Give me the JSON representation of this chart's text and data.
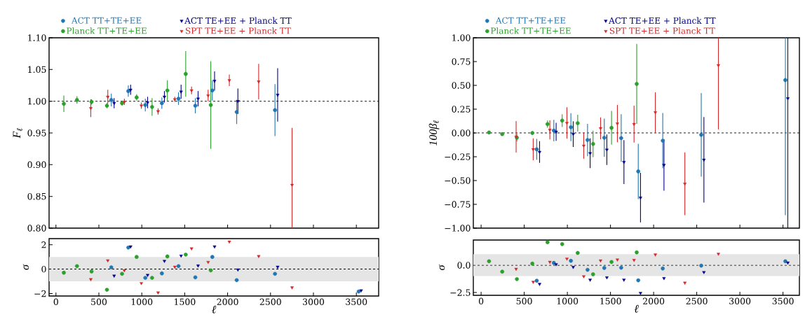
{
  "chart_data": [
    {
      "type": "scatter",
      "ylabel": "F$_{ℓ}$",
      "xlim": [
        -80,
        3760
      ],
      "ylim": [
        0.8,
        1.1
      ],
      "xticks": [
        0,
        500,
        1000,
        1500,
        2000,
        2500,
        3000,
        3500
      ],
      "yticks": [
        {
          "value": 0.8,
          "label": "0.80"
        },
        {
          "value": 0.85,
          "label": "0.85"
        },
        {
          "value": 0.9,
          "label": "0.90"
        },
        {
          "value": 0.95,
          "label": "0.95"
        },
        {
          "value": 1.0,
          "label": "1.00"
        },
        {
          "value": 1.05,
          "label": "1.05"
        },
        {
          "value": 1.1,
          "label": "1.10"
        }
      ],
      "tick_labels": "y",
      "legend": "top",
      "ref_lines": [
        {
          "axis": "y",
          "value": 1,
          "line_style": "dashed",
          "color": "#000000"
        }
      ],
      "series": [
        {
          "name": "ACT TT+TE+EE",
          "color": "#1f77b4",
          "marker": "circle",
          "x": [
            645,
            843,
            1041,
            1234,
            1428,
            1624,
            1822,
            2106,
            2552,
            null
          ],
          "values": [
            1.002,
            1.016,
            0.994,
            0.997,
            1.004,
            0.993,
            1.017,
            0.983,
            0.986,
            null
          ],
          "errors": [
            0.01,
            0.009,
            0.01,
            0.009,
            0.01,
            0.012,
            0.016,
            0.019,
            0.041,
            null
          ]
        },
        {
          "name": "ACT TE+EE + Planck TT",
          "color": "#00008b",
          "marker": "triangle",
          "x": [
            678,
            870,
            1068,
            1264,
            1458,
            1656,
            1848,
            2120,
            2583,
            null
          ],
          "values": [
            0.997,
            1.018,
            0.998,
            1.007,
            1.015,
            1.004,
            1.032,
            1.0,
            1.01,
            null
          ],
          "errors": [
            0.008,
            0.008,
            0.009,
            0.009,
            0.011,
            0.012,
            0.015,
            0.02,
            0.042,
            null
          ]
        },
        {
          "name": "Planck TT+TE+EE",
          "color": "#2ca02c",
          "marker": "circle",
          "x": [
            92,
            245,
            415,
            594,
            770,
            940,
            1120,
            1298,
            1512,
            1804
          ],
          "values": [
            0.996,
            1.002,
            0.999,
            0.993,
            0.997,
            1.006,
            0.991,
            1.017,
            1.043,
            0.994
          ],
          "errors": [
            0.013,
            0.006,
            0.004,
            0.004,
            0.004,
            0.005,
            0.014,
            0.016,
            0.036,
            0.069
          ]
        },
        {
          "name": "SPT TE+EE + Planck TT",
          "color": "#d62728",
          "marker": "triangle",
          "x": [
            406,
            604,
            797,
            995,
            1190,
            1385,
            1580,
            1773,
            2020,
            2362,
            2751
          ],
          "values": [
            0.989,
            1.007,
            0.999,
            0.993,
            0.984,
            1.003,
            1.017,
            1.009,
            1.033,
            1.031,
            0.868
          ],
          "errors": [
            0.014,
            0.011,
            0.005,
            0.005,
            0.005,
            0.004,
            0.006,
            0.009,
            0.009,
            0.028,
            0.09
          ]
        }
      ]
    },
    {
      "type": "scatter",
      "ylabel": "100β$_{ℓ}$",
      "xlim": [
        -90,
        3690
      ],
      "ylim": [
        -1,
        1
      ],
      "xticks": [
        0,
        500,
        1000,
        1500,
        2000,
        2500,
        3000,
        3500
      ],
      "yticks": [
        {
          "value": -1,
          "label": "−1.00"
        },
        {
          "value": -0.75,
          "label": "−0.75"
        },
        {
          "value": -0.5,
          "label": "−0.50"
        },
        {
          "value": -0.25,
          "label": "−0.25"
        },
        {
          "value": 0,
          "label": "0.00"
        },
        {
          "value": 0.25,
          "label": "0.25"
        },
        {
          "value": 0.5,
          "label": "0.50"
        },
        {
          "value": 0.75,
          "label": "0.75"
        },
        {
          "value": 1,
          "label": "1.00"
        }
      ],
      "tick_labels": "y",
      "legend": "top",
      "ref_lines": [
        {
          "axis": "y",
          "value": 0,
          "line_style": "dashed",
          "color": "#000000"
        }
      ],
      "series": [
        {
          "name": "ACT TT+TE+EE",
          "color": "#1f77b4",
          "marker": "circle",
          "x": [
            645,
            843,
            1041,
            1234,
            1428,
            1624,
            1822,
            2106,
            2552,
            3527
          ],
          "values": [
            -0.172,
            0.025,
            0.06,
            -0.074,
            -0.05,
            -0.054,
            -0.404,
            -0.081,
            -0.02,
            0.556
          ],
          "errors": [
            0.11,
            0.113,
            0.147,
            0.17,
            0.2,
            0.25,
            0.29,
            0.29,
            0.44,
            1.42
          ]
        },
        {
          "name": "ACT TE+EE + Planck TT",
          "color": "#00008b",
          "marker": "triangle",
          "x": [
            678,
            870,
            1068,
            1264,
            1458,
            1656,
            1848,
            2120,
            2583,
            3556
          ],
          "values": [
            -0.2,
            0.012,
            -0.012,
            -0.213,
            -0.176,
            -0.306,
            -0.68,
            -0.336,
            -0.282,
            0.363
          ],
          "errors": [
            0.114,
            0.094,
            0.135,
            0.156,
            0.16,
            0.23,
            0.26,
            0.27,
            0.45,
            1.65
          ]
        },
        {
          "name": "Planck TT+TE+EE",
          "color": "#2ca02c",
          "marker": "circle",
          "x": [
            92,
            245,
            415,
            594,
            770,
            940,
            1120,
            1298,
            1512,
            1804
          ],
          "values": [
            0.005,
            -0.012,
            -0.05,
            0.0,
            0.093,
            0.13,
            0.103,
            -0.115,
            0.054,
            0.515
          ],
          "errors": [
            null,
            null,
            0.04,
            0.02,
            0.037,
            0.067,
            0.088,
            0.138,
            0.178,
            0.42
          ]
        },
        {
          "name": "SPT TE+EE + Planck TT",
          "color": "#d62728",
          "marker": "triangle",
          "x": [
            406,
            604,
            797,
            995,
            1190,
            1385,
            1580,
            1773,
            2020,
            2362,
            2751
          ],
          "values": [
            -0.04,
            -0.172,
            0.032,
            0.105,
            -0.135,
            0.049,
            0.098,
            0.093,
            0.216,
            -0.534,
            0.711
          ],
          "errors": [
            0.165,
            0.115,
            0.1,
            0.165,
            0.136,
            0.115,
            0.196,
            0.194,
            0.21,
            0.33,
            0.674
          ]
        }
      ]
    },
    {
      "type": "scatter",
      "xlabel": "*ℓ*",
      "ylabel": "*σ*",
      "xlim": [
        -80,
        3760
      ],
      "ylim": [
        -2.2,
        2.5
      ],
      "xticks": [
        0,
        500,
        1000,
        1500,
        2000,
        2500,
        3000,
        3500
      ],
      "yticks": [
        {
          "value": -2,
          "label": "−2"
        },
        0,
        2
      ],
      "bands": [
        {
          "axis": "y",
          "from": -1,
          "to": 1,
          "color": "#e5e5e5"
        }
      ],
      "ref_lines": [
        {
          "axis": "y",
          "value": 0,
          "line_style": "dashed",
          "color": "#000000"
        }
      ],
      "series": [
        {
          "color": "#1f77b4",
          "marker": "circle",
          "x": [
            645,
            843,
            1041,
            1234,
            1428,
            1624,
            1822,
            2106,
            2552,
            3527
          ],
          "values": [
            0.15,
            1.77,
            -0.71,
            -0.35,
            0.25,
            -0.67,
            1.0,
            -0.9,
            -0.38,
            -1.83
          ]
        },
        {
          "color": "#00008b",
          "marker": "triangle",
          "x": [
            678,
            870,
            1068,
            1264,
            1458,
            1656,
            1848,
            2120,
            2583,
            3556
          ],
          "values": [
            -0.54,
            1.85,
            -0.48,
            0.67,
            1.1,
            0.29,
            1.85,
            -0.04,
            0.19,
            -1.75
          ]
        },
        {
          "color": "#2ca02c",
          "marker": "circle",
          "x": [
            92,
            245,
            415,
            594,
            770,
            940,
            1120,
            1298,
            1512,
            1804
          ],
          "values": [
            -0.29,
            0.25,
            -0.19,
            -1.69,
            -0.38,
            1.0,
            -0.71,
            1.04,
            1.19,
            -0.1
          ]
        },
        {
          "color": "#d62728",
          "marker": "triangle",
          "x": [
            406,
            604,
            797,
            995,
            1190,
            1385,
            1580,
            1773,
            2020,
            2362,
            2751
          ],
          "values": [
            -0.83,
            0.71,
            -0.1,
            -1.15,
            -1.92,
            0.19,
            1.69,
            0.58,
            2.25,
            1.06,
            -1.5
          ]
        }
      ]
    },
    {
      "type": "scatter",
      "xlabel": "*ℓ*",
      "ylabel": "*σ*",
      "xlim": [
        -90,
        3690
      ],
      "ylim": [
        -2.75,
        2.3
      ],
      "xticks": [
        0,
        500,
        1000,
        1500,
        2000,
        2500,
        3000,
        3500
      ],
      "yticks": [
        {
          "value": -2.5,
          "label": "−2.5"
        },
        {
          "value": 0,
          "label": "0.0"
        }
      ],
      "bands": [
        {
          "axis": "y",
          "from": -1,
          "to": 1,
          "color": "#e5e5e5"
        }
      ],
      "ref_lines": [
        {
          "axis": "y",
          "value": 0,
          "line_style": "dashed",
          "color": "#000000"
        }
      ],
      "series": [
        {
          "color": "#1f77b4",
          "marker": "circle",
          "x": [
            645,
            843,
            1041,
            1234,
            1428,
            1624,
            1822,
            2106,
            2552,
            3527
          ],
          "values": [
            -1.42,
            0.21,
            0.4,
            -0.42,
            -0.25,
            -0.23,
            -1.38,
            -0.3,
            -0.04,
            0.36
          ]
        },
        {
          "color": "#00008b",
          "marker": "triangle",
          "x": [
            678,
            870,
            1068,
            1264,
            1458,
            1656,
            1848,
            2120,
            2583,
            3556
          ],
          "values": [
            -1.72,
            0.08,
            -0.17,
            -1.33,
            -1.12,
            -1.33,
            -2.54,
            -1.19,
            -0.64,
            0.23
          ]
        },
        {
          "color": "#2ca02c",
          "marker": "circle",
          "x": [
            92,
            245,
            415,
            594,
            770,
            940,
            1120,
            1298,
            1512,
            1804
          ],
          "values": [
            0.36,
            -0.59,
            -1.27,
            0.15,
            2.1,
            1.93,
            1.12,
            -0.83,
            0.3,
            1.17
          ]
        },
        {
          "color": "#d62728",
          "marker": "triangle",
          "x": [
            406,
            604,
            797,
            995,
            1190,
            1385,
            1580,
            1773,
            2020,
            2362,
            2751
          ],
          "values": [
            -0.34,
            -1.53,
            0.3,
            0.59,
            -1.02,
            0.42,
            0.51,
            0.47,
            0.97,
            -1.61,
            1.04
          ]
        }
      ]
    }
  ]
}
